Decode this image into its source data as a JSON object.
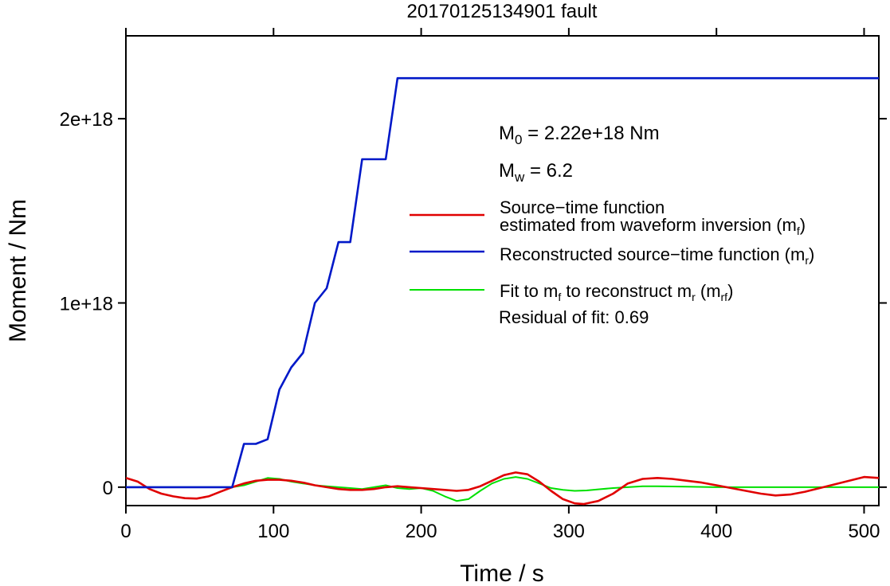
{
  "chart_data": {
    "type": "line",
    "title": "20170125134901 fault",
    "xlabel": "Time / s",
    "ylabel": "Moment / Nm",
    "xlim": [
      0,
      510
    ],
    "ylim": [
      -1e+17,
      2.45e+18
    ],
    "x_ticks": [
      0,
      100,
      200,
      300,
      400,
      500
    ],
    "x_tick_labels": [
      "0",
      "100",
      "200",
      "300",
      "400",
      "500"
    ],
    "y_ticks": [
      0,
      1e+18,
      2e+18
    ],
    "y_tick_labels": [
      "0",
      "1e+18",
      "2e+18"
    ],
    "grid": false,
    "annotations": {
      "m0": {
        "prefix": "M",
        "sub": "0",
        "rest": " = 2.22e+18 Nm"
      },
      "mw": {
        "prefix": "M",
        "sub": "w",
        "rest": " = 6.2"
      },
      "residual": "Residual of fit: 0.69"
    },
    "legend": {
      "placement": "right",
      "items": [
        {
          "color": "#e00000",
          "lines": [
            [
              {
                "t": "Source−time function"
              }
            ],
            [
              {
                "t": "estimated from waveform inversion (m"
              },
              {
                "t": "f",
                "sub": true
              },
              {
                "t": ")"
              }
            ]
          ]
        },
        {
          "color": "#0018c8",
          "lines": [
            [
              {
                "t": "Reconstructed source−time function (m"
              },
              {
                "t": "r",
                "sub": true
              },
              {
                "t": ")"
              }
            ]
          ]
        },
        {
          "color": "#00e000",
          "lines": [
            [
              {
                "t": "Fit to m"
              },
              {
                "t": "f",
                "sub": true
              },
              {
                "t": " to reconstruct m"
              },
              {
                "t": "r",
                "sub": true
              },
              {
                "t": " (m"
              },
              {
                "t": "rf",
                "sub": true
              },
              {
                "t": ")"
              }
            ]
          ]
        }
      ]
    },
    "series": [
      {
        "name": "Source−time function estimated from waveform inversion (mf)",
        "color": "#e00000",
        "x": [
          0,
          8,
          16,
          24,
          32,
          40,
          48,
          56,
          64,
          72,
          80,
          88,
          96,
          104,
          112,
          120,
          128,
          136,
          144,
          152,
          160,
          168,
          176,
          184,
          192,
          200,
          208,
          216,
          224,
          232,
          240,
          248,
          256,
          264,
          272,
          280,
          288,
          296,
          304,
          310,
          320,
          330,
          340,
          350,
          360,
          370,
          380,
          390,
          400,
          410,
          420,
          430,
          440,
          450,
          460,
          470,
          480,
          490,
          500,
          510
        ],
        "y": [
          5e+16,
          3e+16,
          -1e+16,
          -3.5e+16,
          -5e+16,
          -6e+16,
          -6.2e+16,
          -5e+16,
          -2.5e+16,
          0,
          2e+16,
          3.5e+16,
          4e+16,
          4e+16,
          3.5e+16,
          2.5e+16,
          1e+16,
          0,
          -1e+16,
          -1.5e+16,
          -1.5e+16,
          -1e+16,
          0,
          5000000000000000.0,
          0,
          -5000000000000000.0,
          -1e+16,
          -1.5e+16,
          -2e+16,
          -1.5e+16,
          5000000000000000.0,
          3.5e+16,
          6.5e+16,
          8e+16,
          7e+16,
          3e+16,
          -2e+16,
          -6.5e+16,
          -8.8e+16,
          -9.2e+16,
          -7.5e+16,
          -3.5e+16,
          2e+16,
          4.5e+16,
          5e+16,
          4.5e+16,
          3.5e+16,
          2.5e+16,
          1e+16,
          -5000000000000000.0,
          -2e+16,
          -3.5e+16,
          -4.5e+16,
          -4e+16,
          -2.5e+16,
          -5000000000000000.0,
          1.5e+16,
          3.5e+16,
          5.5e+16,
          5e+16
        ]
      },
      {
        "name": "Reconstructed source−time function (mr)",
        "color": "#0018c8",
        "x": [
          0,
          72,
          80,
          88,
          96,
          104,
          112,
          120,
          128,
          136,
          144,
          152,
          160,
          168,
          176,
          184,
          510
        ],
        "y": [
          0,
          0,
          2.35e+17,
          2.35e+17,
          2.6e+17,
          5.3e+17,
          6.5e+17,
          7.3e+17,
          1e+18,
          1.08e+18,
          1.33e+18,
          1.33e+18,
          1.78e+18,
          1.78e+18,
          1.78e+18,
          2.22e+18,
          2.22e+18
        ]
      },
      {
        "name": "Fit to mf to reconstruct mr (mrf)",
        "color": "#00e000",
        "x": [
          0,
          60,
          72,
          80,
          88,
          96,
          104,
          112,
          120,
          128,
          136,
          144,
          152,
          160,
          168,
          176,
          184,
          192,
          200,
          208,
          216,
          224,
          232,
          240,
          248,
          256,
          264,
          272,
          280,
          288,
          296,
          304,
          312,
          320,
          330,
          340,
          350,
          360,
          380,
          400,
          450,
          510
        ],
        "y": [
          0,
          0,
          0,
          1e+16,
          3e+16,
          5e+16,
          4.5e+16,
          3e+16,
          2e+16,
          1e+16,
          5000000000000000.0,
          0,
          -5000000000000000.0,
          -1e+16,
          0,
          1e+16,
          -5000000000000000.0,
          -1e+16,
          -5000000000000000.0,
          -2e+16,
          -5e+16,
          -7.5e+16,
          -6.5e+16,
          -2e+16,
          2e+16,
          4.5e+16,
          5.5e+16,
          4.5e+16,
          2e+16,
          -5000000000000000.0,
          -1.5e+16,
          -2e+16,
          -1.8e+16,
          -1.2e+16,
          -5000000000000000.0,
          0,
          5000000000000000.0,
          5000000000000000.0,
          3000000000000000.0,
          0,
          0,
          0
        ]
      }
    ]
  }
}
